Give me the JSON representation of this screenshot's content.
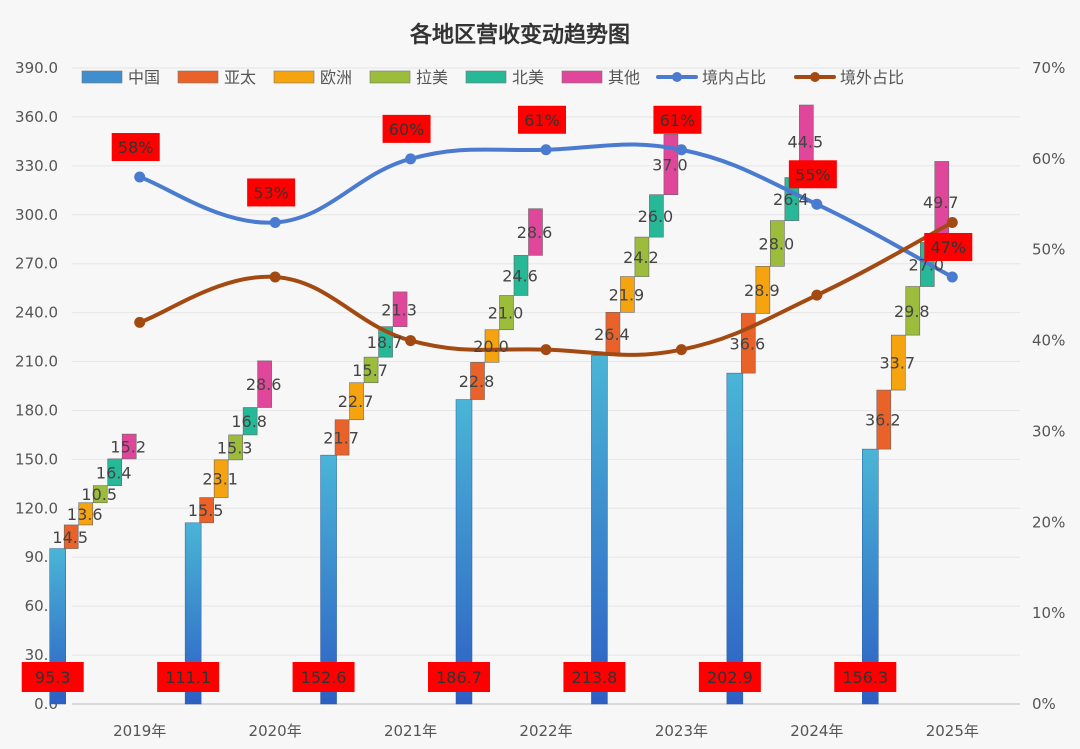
{
  "chart_data": {
    "type": "bar",
    "title": "各地区营收变动趋势图",
    "categories": [
      "2019年",
      "2020年",
      "2021年",
      "2022年",
      "2023年",
      "2024年",
      "2025年"
    ],
    "ylim": [
      0,
      390
    ],
    "y_ticks": [
      "0.0",
      "30.0",
      "60.0",
      "90.0",
      "120.0",
      "150.0",
      "180.0",
      "210.0",
      "240.0",
      "270.0",
      "300.0",
      "330.0",
      "360.0",
      "390.0"
    ],
    "y2lim": [
      0,
      70
    ],
    "y2_ticks": [
      "0%",
      "10%",
      "20%",
      "30%",
      "40%",
      "50%",
      "60%",
      "70%"
    ],
    "legend_position": "top",
    "series": [
      {
        "name": "中国",
        "kind": "column",
        "color": "#3f8fcf",
        "values": [
          95.3,
          111.1,
          152.6,
          186.7,
          213.8,
          202.9,
          156.3
        ],
        "labels": [
          "95.3",
          "111.1",
          "152.6",
          "186.7",
          "213.8",
          "202.9",
          "156.3"
        ]
      },
      {
        "name": "亚太",
        "kind": "waterfall",
        "color": "#e8622a",
        "values": [
          14.5,
          15.5,
          21.7,
          22.8,
          26.4,
          36.6,
          36.2
        ],
        "labels": [
          "14.5",
          "15.5",
          "21.7",
          "22.8",
          "26.4",
          "36.6",
          "36.2"
        ]
      },
      {
        "name": "欧洲",
        "kind": "waterfall",
        "color": "#f5a30f",
        "values": [
          13.6,
          23.1,
          22.7,
          20.0,
          21.9,
          28.9,
          33.7
        ],
        "labels": [
          "13.6",
          "23.1",
          "22.7",
          "20.0",
          "21.9",
          "28.9",
          "33.7"
        ]
      },
      {
        "name": "拉美",
        "kind": "waterfall",
        "color": "#9cbd3c",
        "values": [
          10.5,
          15.3,
          15.7,
          21.0,
          24.2,
          28.0,
          29.8
        ],
        "labels": [
          "10.5",
          "15.3",
          "15.7",
          "21.0",
          "24.2",
          "28.0",
          "29.8"
        ]
      },
      {
        "name": "北美",
        "kind": "waterfall",
        "color": "#26b897",
        "values": [
          16.4,
          16.8,
          18.7,
          24.6,
          26.0,
          26.4,
          27.0
        ],
        "labels": [
          "16.4",
          "16.8",
          "18.7",
          "24.6",
          "26.0",
          "26.4",
          "27.0"
        ]
      },
      {
        "name": "其他",
        "kind": "waterfall",
        "color": "#e0479a",
        "values": [
          15.2,
          28.6,
          21.3,
          28.6,
          37.0,
          44.5,
          49.7
        ],
        "labels": [
          "15.2",
          "28.6",
          "21.3",
          "28.6",
          "37.0",
          "44.5",
          "49.7"
        ]
      },
      {
        "name": "境内占比",
        "kind": "line",
        "axis": "right",
        "color": "#4a7bd0",
        "values": [
          58,
          53,
          60,
          61,
          61,
          55,
          47
        ],
        "labels": [
          "58%",
          "53%",
          "60%",
          "61%",
          "61%",
          "55%",
          "47%"
        ]
      },
      {
        "name": "境外占比",
        "kind": "line",
        "axis": "right",
        "color": "#a34a12",
        "values": [
          42,
          47,
          40,
          39,
          39,
          45,
          53
        ]
      }
    ],
    "label_highlight_color": "#ff0000"
  }
}
